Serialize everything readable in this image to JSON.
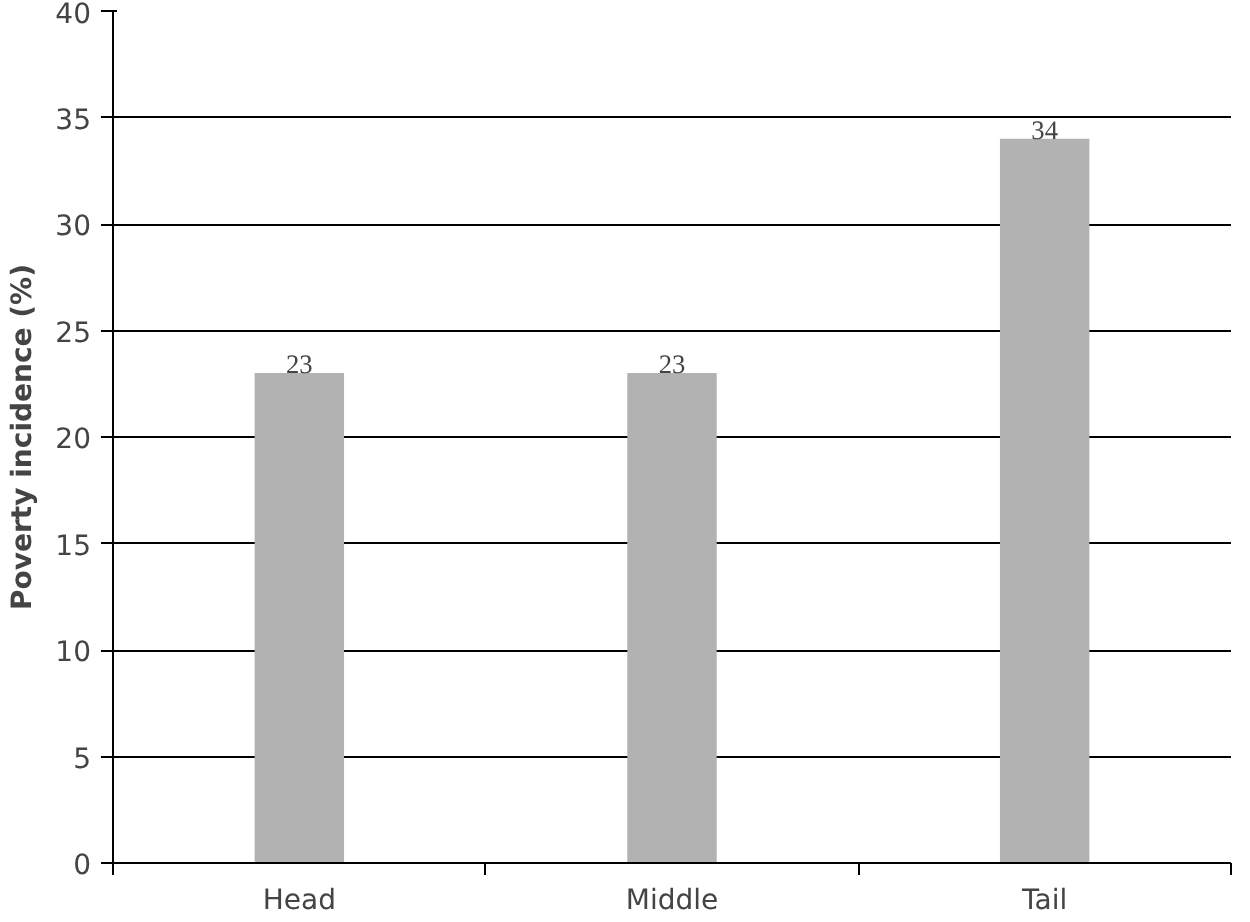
{
  "chart_data": {
    "type": "bar",
    "ylabel": "Poverty incidence (%)",
    "categories": [
      "Head",
      "Middle",
      "Tail"
    ],
    "values": [
      23,
      23,
      34
    ],
    "color": "#b2b2b2",
    "ylim": [
      0,
      40
    ],
    "yticks": [
      0,
      5,
      10,
      15,
      20,
      25,
      30,
      35,
      40
    ],
    "grid": "y",
    "data_labels": true
  }
}
